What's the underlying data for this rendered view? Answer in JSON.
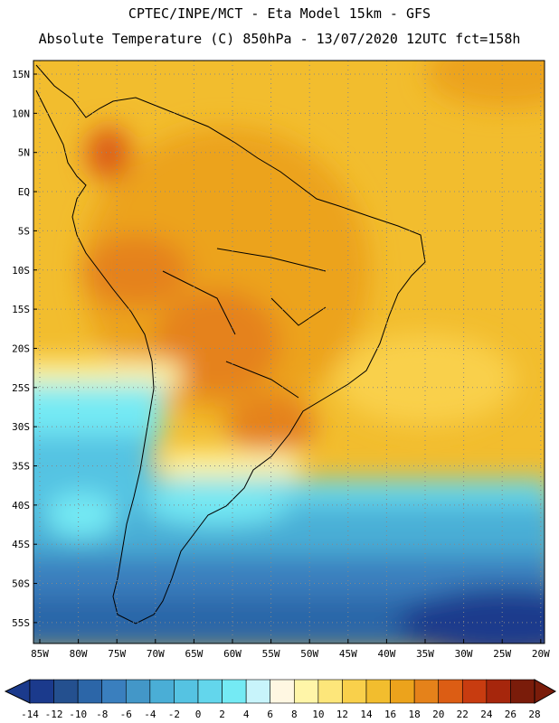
{
  "header": {
    "title": "CPTEC/INPE/MCT -  Eta Model 15km - GFS",
    "subtitle": "Absolute Temperature (C) 850hPa - 13/07/2020 12UTC fct=158h"
  },
  "axes": {
    "lat_labels": [
      "15N",
      "10N",
      "5N",
      "EQ",
      "5S",
      "10S",
      "15S",
      "20S",
      "25S",
      "30S",
      "35S",
      "40S",
      "45S",
      "50S",
      "55S"
    ],
    "lon_labels": [
      "85W",
      "80W",
      "75W",
      "70W",
      "65W",
      "60W",
      "55W",
      "50W",
      "45W",
      "40W",
      "35W",
      "30W",
      "25W",
      "20W"
    ]
  },
  "legend": {
    "labels": [
      "-14",
      "-12",
      "-10",
      "-8",
      "-6",
      "-4",
      "-2",
      "0",
      "2",
      "4",
      "6",
      "8",
      "10",
      "12",
      "14",
      "16",
      "18",
      "20",
      "22",
      "24",
      "26",
      "28"
    ],
    "colors": [
      "#1b3a8c",
      "#24508f",
      "#2c66a8",
      "#3a7fbe",
      "#4397c8",
      "#4aaed6",
      "#55c3e2",
      "#63d6ec",
      "#74eaf4",
      "#c8f4fb",
      "#fff7e2",
      "#fff5a8",
      "#fde67a",
      "#f9d04b",
      "#f2bd2e",
      "#eca31c",
      "#e5821a",
      "#dc5d14",
      "#c83c10",
      "#a6260c",
      "#7a1c0a"
    ]
  }
}
